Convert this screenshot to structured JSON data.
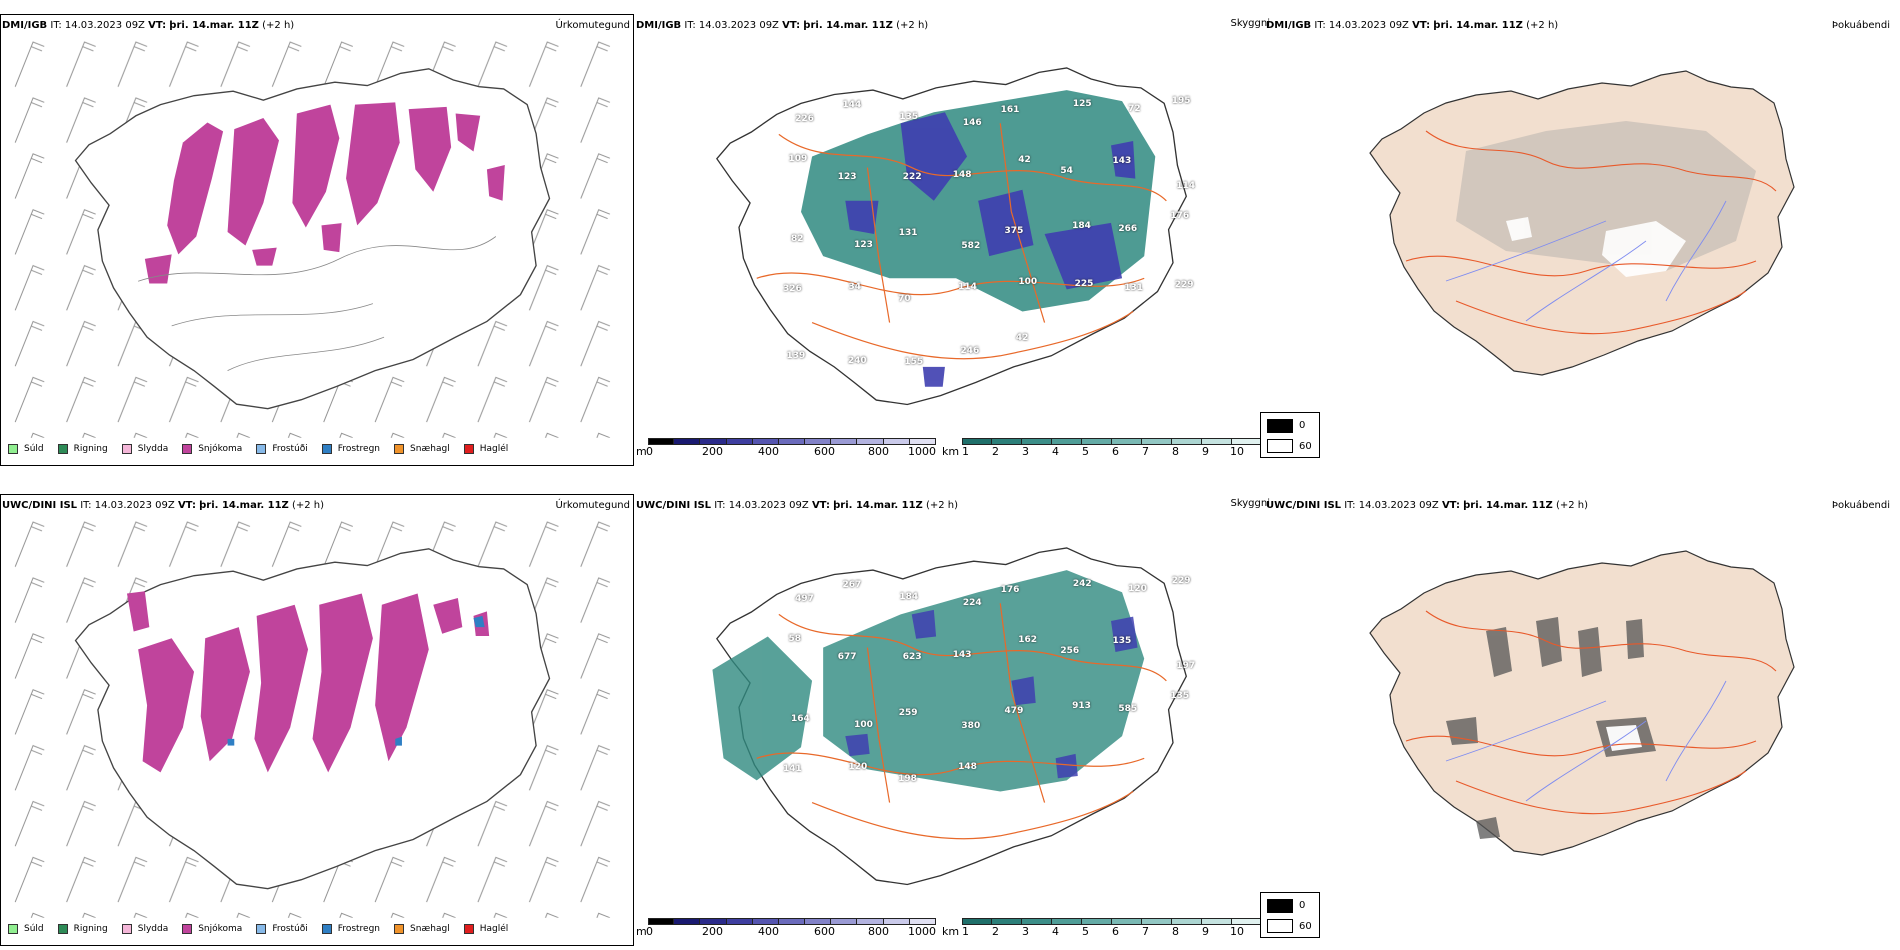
{
  "rows": [
    {
      "model": "DMI/IGB",
      "it_label": "IT:",
      "it_value": "14.03.2023 09Z",
      "vt_label": "VT:",
      "vt_value": "þri. 14.mar. 11Z",
      "lead": "(+2 h)"
    },
    {
      "model": "UWC/DINI ISL",
      "it_label": "IT:",
      "it_value": "14.03.2023 09Z",
      "vt_label": "VT:",
      "vt_value": "þri. 14.mar. 11Z",
      "lead": "(+2 h)"
    }
  ],
  "panel_titles": {
    "precip": "Úrkomutegund",
    "cloud": "Skyggni",
    "fog": "Þokuábendi"
  },
  "precip_legend": [
    {
      "label": "Súld",
      "color": "#90ee90"
    },
    {
      "label": "Rigning",
      "color": "#2e8b57"
    },
    {
      "label": "Slydda",
      "color": "#f4b6d8"
    },
    {
      "label": "Snjókoma",
      "color": "#c0449c"
    },
    {
      "label": "Frostúði",
      "color": "#87b9e8"
    },
    {
      "label": "Frostregn",
      "color": "#2f7fc4"
    },
    {
      "label": "Snæhagl",
      "color": "#f0932b"
    },
    {
      "label": "Haglél",
      "color": "#e01e1e"
    }
  ],
  "height_bar": {
    "unit": "m",
    "ticks": [
      "0",
      "200",
      "400",
      "600",
      "800",
      "1000"
    ],
    "colors": [
      "#000000",
      "#191970",
      "#2a2a8a",
      "#3e3ea0",
      "#5555b0",
      "#6b6bbc",
      "#8282c8",
      "#9a9ad4",
      "#b3b3e0",
      "#cacaea",
      "#e0e0f2"
    ]
  },
  "vis_bar": {
    "unit": "km",
    "ticks": [
      "1",
      "2",
      "3",
      "4",
      "5",
      "6",
      "7",
      "8",
      "9",
      "10"
    ],
    "colors": [
      "#1f6f6a",
      "#2c7f79",
      "#3c8e88",
      "#4f9d97",
      "#64aba6",
      "#7ab9b4",
      "#92c7c3",
      "#abd5d1",
      "#c5e3e0",
      "#e0f1ef"
    ]
  },
  "fog_legend": {
    "values": [
      "0",
      "60"
    ]
  },
  "cloud_labels": {
    "row0": [
      "226",
      "144",
      "135",
      "146",
      "161",
      "125",
      "72",
      "195",
      "109",
      "123",
      "222",
      "148",
      "42",
      "54",
      "143",
      "114",
      "82",
      "123",
      "131",
      "582",
      "375",
      "184",
      "266",
      "176",
      "326",
      "34",
      "70",
      "114",
      "100",
      "225",
      "131",
      "229",
      "139",
      "240",
      "155",
      "246",
      "42"
    ],
    "row1": [
      "497",
      "267",
      "184",
      "224",
      "176",
      "242",
      "120",
      "229",
      "58",
      "677",
      "623",
      "143",
      "162",
      "256",
      "135",
      "197",
      "164",
      "100",
      "259",
      "380",
      "479",
      "913",
      "585",
      "135",
      "141",
      "120",
      "198",
      "148"
    ]
  },
  "colors": {
    "land": "#f2dfcf",
    "road": "#e8692a",
    "river": "#7f8cf0",
    "snow": "#c0449c",
    "cloud_high": "#3f3fb0",
    "cloud_low": "#2f8a80"
  }
}
